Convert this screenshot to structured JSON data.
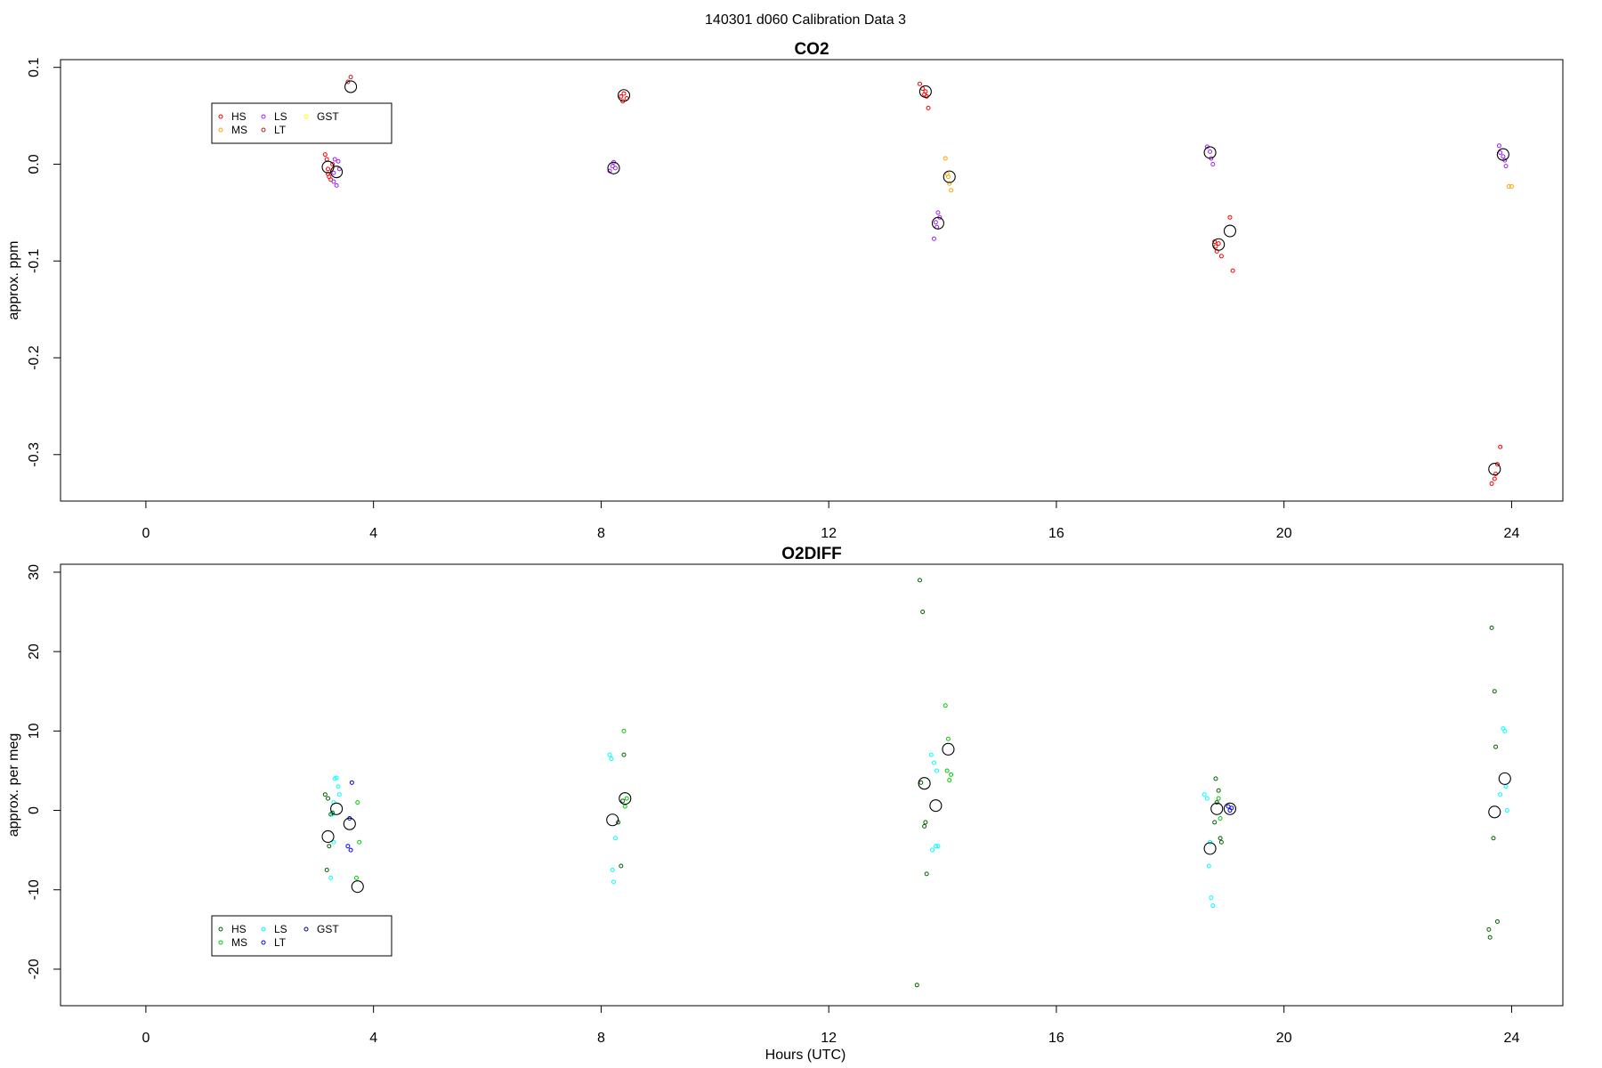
{
  "figure": {
    "title": "140301   d060   Calibration Data 3",
    "xlabel": "Hours (UTC)"
  },
  "chart_data": [
    {
      "type": "scatter",
      "title": "CO2",
      "ylabel": "approx. ppm",
      "xlabel": "",
      "xlim": [
        -1.5,
        24.9
      ],
      "ylim": [
        -0.348,
        0.108
      ],
      "xticks": [
        0,
        4,
        8,
        12,
        16,
        20,
        24
      ],
      "yticks": [
        -0.3,
        -0.2,
        -0.1,
        0.0,
        0.1
      ],
      "ytick_labels": [
        "-0.3",
        "-0.2",
        "-0.1",
        "0.0",
        "0.1"
      ],
      "legend": {
        "position": "upper-left",
        "columns": 3,
        "entries": [
          {
            "label": "HS",
            "color": "#ff0000"
          },
          {
            "label": "MS",
            "color": "#ffa500"
          },
          {
            "label": "LS",
            "color": "#a020f0"
          },
          {
            "label": "LT",
            "color": "#b22222"
          },
          {
            "label": "GST",
            "color": "#ffff00"
          }
        ]
      },
      "series": [
        {
          "name": "HS",
          "color": "#ff0000",
          "x": [
            3.15,
            3.18,
            3.2,
            3.22,
            3.25,
            3.28,
            3.2,
            8.35,
            8.4,
            8.45,
            8.38,
            13.6,
            13.65,
            13.7,
            13.68,
            13.72,
            13.75,
            18.78,
            18.8,
            18.85,
            18.82,
            18.9,
            19.05,
            19.1,
            23.65,
            23.7,
            23.72,
            23.75,
            23.8
          ],
          "y": [
            0.01,
            0.005,
            -0.01,
            -0.013,
            -0.016,
            0.0,
            -0.005,
            0.07,
            0.073,
            0.068,
            0.065,
            0.083,
            0.078,
            0.075,
            0.072,
            0.07,
            0.058,
            -0.08,
            -0.085,
            -0.082,
            -0.09,
            -0.095,
            -0.055,
            -0.11,
            -0.33,
            -0.325,
            -0.32,
            -0.31,
            -0.292
          ]
        },
        {
          "name": "LT",
          "color": "#b22222",
          "x": [
            3.6,
            3.55
          ],
          "y": [
            0.09,
            0.085
          ]
        },
        {
          "name": "LS",
          "color": "#a020f0",
          "x": [
            3.3,
            3.35,
            3.4,
            3.32,
            3.38,
            3.3,
            8.15,
            8.2,
            8.22,
            8.25,
            13.85,
            13.9,
            13.88,
            13.92,
            13.95,
            18.65,
            18.7,
            18.72,
            18.75,
            23.78,
            23.8,
            23.85,
            23.88,
            23.9
          ],
          "y": [
            -0.018,
            -0.022,
            -0.005,
            0.005,
            0.003,
            -0.009,
            -0.007,
            -0.002,
            0.002,
            -0.004,
            -0.077,
            -0.065,
            -0.06,
            -0.05,
            -0.055,
            0.018,
            0.013,
            0.006,
            0.0,
            0.019,
            0.012,
            0.008,
            0.004,
            -0.002
          ]
        },
        {
          "name": "MS",
          "color": "#ffa500",
          "x": [
            14.05,
            14.1,
            14.12,
            14.15,
            14.08,
            23.95,
            24.0
          ],
          "y": [
            0.006,
            -0.013,
            -0.02,
            -0.027,
            -0.01,
            -0.023,
            -0.023
          ]
        },
        {
          "name": "mean",
          "color": "#000000",
          "x": [
            3.2,
            3.35,
            3.6,
            8.22,
            8.4,
            13.7,
            13.92,
            14.12,
            18.7,
            18.85,
            19.05,
            23.7,
            23.85
          ],
          "y": [
            -0.003,
            -0.008,
            0.08,
            -0.004,
            0.071,
            0.075,
            -0.061,
            -0.013,
            0.012,
            -0.083,
            -0.069,
            -0.315,
            0.01
          ]
        }
      ]
    },
    {
      "type": "scatter",
      "title": "O2DIFF",
      "ylabel": "approx. per meg",
      "xlabel": "Hours (UTC)",
      "xlim": [
        -1.5,
        24.9
      ],
      "ylim": [
        -24.6,
        31.0
      ],
      "xticks": [
        0,
        4,
        8,
        12,
        16,
        20,
        24
      ],
      "yticks": [
        -20,
        -10,
        0,
        10,
        20,
        30
      ],
      "ytick_labels": [
        "-20",
        "-10",
        "0",
        "10",
        "20",
        "30"
      ],
      "legend": {
        "position": "lower-left",
        "columns": 3,
        "entries": [
          {
            "label": "HS",
            "color": "#006400"
          },
          {
            "label": "MS",
            "color": "#00cd00"
          },
          {
            "label": "LS",
            "color": "#00ffff"
          },
          {
            "label": "LT",
            "color": "#0000ff"
          },
          {
            "label": "GST",
            "color": "#00008b"
          }
        ]
      },
      "series": [
        {
          "name": "HS",
          "color": "#006400",
          "x": [
            3.15,
            3.2,
            3.25,
            3.22,
            3.28,
            3.18,
            8.35,
            8.4,
            8.38,
            8.3,
            13.6,
            13.65,
            13.62,
            13.68,
            13.7,
            13.72,
            13.55,
            18.8,
            18.85,
            18.82,
            18.78,
            18.88,
            18.9,
            23.65,
            23.7,
            23.72,
            23.68,
            23.75,
            23.6,
            23.62
          ],
          "y": [
            2.0,
            1.5,
            -0.5,
            -4.5,
            -0.3,
            -7.5,
            -7.0,
            7.0,
            1.2,
            -1.5,
            29.0,
            25.0,
            3.5,
            -2.0,
            -1.5,
            -8.0,
            -22.0,
            4.0,
            2.5,
            1.0,
            -1.5,
            -3.5,
            -4.0,
            23.0,
            15.0,
            8.0,
            -3.5,
            -14.0,
            -15.0,
            -16.0
          ]
        },
        {
          "name": "MS",
          "color": "#00cd00",
          "x": [
            3.7,
            3.75,
            3.72,
            8.4,
            8.45,
            8.42,
            14.05,
            14.1,
            14.15,
            14.08,
            14.12,
            18.85,
            18.88
          ],
          "y": [
            -8.5,
            -4.0,
            1.0,
            10.0,
            1.5,
            0.5,
            13.2,
            9.0,
            4.5,
            5.0,
            3.8,
            1.5,
            -1.0
          ]
        },
        {
          "name": "LS",
          "color": "#00ffff",
          "x": [
            3.25,
            3.3,
            3.32,
            3.35,
            3.38,
            3.4,
            3.3,
            3.28,
            8.15,
            8.18,
            8.2,
            8.22,
            8.25,
            13.8,
            13.85,
            13.9,
            13.88,
            13.82,
            13.92,
            18.6,
            18.65,
            18.7,
            18.68,
            18.72,
            18.75,
            23.85,
            23.88,
            23.9,
            23.92,
            23.8
          ],
          "y": [
            -8.5,
            -4.0,
            4.0,
            4.1,
            3.0,
            2.0,
            1.0,
            -0.5,
            7.0,
            6.5,
            -7.5,
            -9.0,
            -3.5,
            7.0,
            6.0,
            5.0,
            -4.5,
            -5.0,
            -4.5,
            2.0,
            1.5,
            -4.0,
            -7.0,
            -11.0,
            -12.0,
            10.3,
            10.0,
            3.0,
            0.0,
            2.0
          ]
        },
        {
          "name": "LT",
          "color": "#0000ff",
          "x": [
            3.55,
            3.6,
            3.62,
            3.58,
            19.02,
            19.05,
            19.08
          ],
          "y": [
            -4.5,
            -5.0,
            3.5,
            -1.0,
            0.5,
            0.0,
            0.3
          ]
        },
        {
          "name": "mean",
          "color": "#000000",
          "x": [
            3.2,
            3.35,
            3.58,
            3.72,
            8.2,
            8.42,
            13.68,
            13.88,
            14.1,
            18.7,
            18.82,
            19.05,
            23.7,
            23.88
          ],
          "y": [
            -3.3,
            0.2,
            -1.7,
            -9.6,
            -1.2,
            1.5,
            3.4,
            0.6,
            7.7,
            -4.8,
            0.2,
            0.2,
            -0.2,
            4.0
          ]
        }
      ]
    }
  ]
}
